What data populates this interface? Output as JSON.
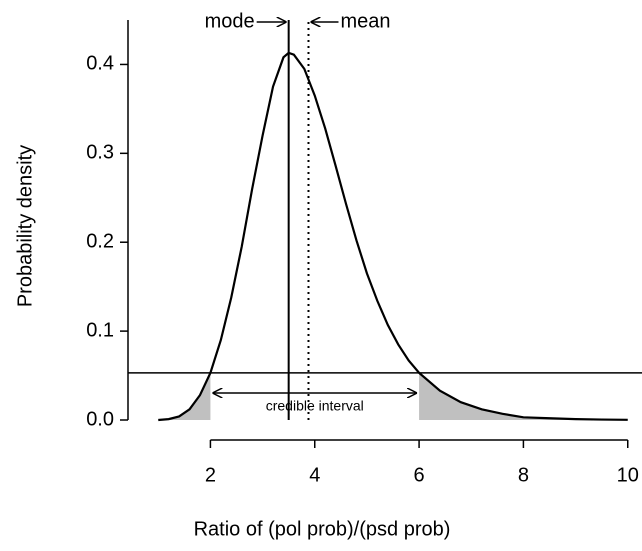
{
  "chart_data": {
    "type": "density",
    "xlabel": "Ratio of (pol prob)/(psd prob)",
    "ylabel": "Probability density",
    "x": [
      1.0,
      1.2,
      1.4,
      1.6,
      1.8,
      2.0,
      2.2,
      2.4,
      2.6,
      2.8,
      3.0,
      3.2,
      3.4,
      3.5,
      3.6,
      3.8,
      4.0,
      4.2,
      4.4,
      4.6,
      4.8,
      5.0,
      5.2,
      5.4,
      5.6,
      5.8,
      6.0,
      6.4,
      6.8,
      7.2,
      7.6,
      8.0,
      8.5,
      9.0,
      9.5,
      10.0
    ],
    "values": [
      0,
      0.001,
      0.004,
      0.012,
      0.028,
      0.053,
      0.09,
      0.138,
      0.195,
      0.26,
      0.32,
      0.375,
      0.408,
      0.413,
      0.411,
      0.395,
      0.365,
      0.328,
      0.286,
      0.243,
      0.202,
      0.165,
      0.134,
      0.107,
      0.085,
      0.067,
      0.053,
      0.033,
      0.02,
      0.012,
      0.007,
      0.003,
      0.002,
      0.001,
      0.0005,
      0.0002
    ],
    "color": "#000000",
    "shade_color": "#c0c0c0",
    "mode": 3.5,
    "mean": 3.88,
    "density_level": 0.053,
    "interval": [
      2.0,
      6.0
    ],
    "annotations": {
      "mode": "mode",
      "mean": "mean",
      "interval": "credible interval"
    },
    "xlim": [
      0.42,
      10.35
    ],
    "ylim": [
      0,
      0.45
    ],
    "xticks": [
      2,
      4,
      6,
      8,
      10
    ],
    "yticks": [
      {
        "value": 0,
        "label": "0.0"
      },
      0.1,
      0.2,
      0.3,
      0.4
    ]
  }
}
